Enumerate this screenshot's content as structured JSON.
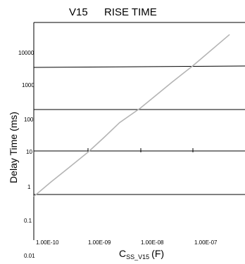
{
  "chart_data": {
    "type": "line",
    "title": "V15",
    "subtitle": "RISE TIME",
    "ylabel": "Delay Time (ms)",
    "xlabel": {
      "main": "C",
      "sub": "SS_V15",
      "unit": "(F)"
    },
    "y_tick_labels": [
      "10000",
      "1000",
      "100",
      "10",
      "1",
      "0.1",
      "0.01"
    ],
    "x_tick_labels": [
      "1.00E-10",
      "1.00E-09",
      "1.00E-08",
      "1.00E-07"
    ],
    "x_scale": "log",
    "y_scale": "log",
    "xlim": [
      7e-11,
      5e-07
    ],
    "ylim": [
      0.01,
      20000
    ],
    "series": [
      {
        "color": "#b4b4b4",
        "x": [
          7e-11,
          2e-10,
          4e-10,
          1e-09,
          2e-09,
          4e-09,
          1e-08,
          4e-08,
          1e-07,
          5e-07
        ],
        "y": [
          0.9,
          2,
          4,
          10,
          22,
          50,
          110,
          450,
          1100,
          6000
        ]
      }
    ]
  }
}
